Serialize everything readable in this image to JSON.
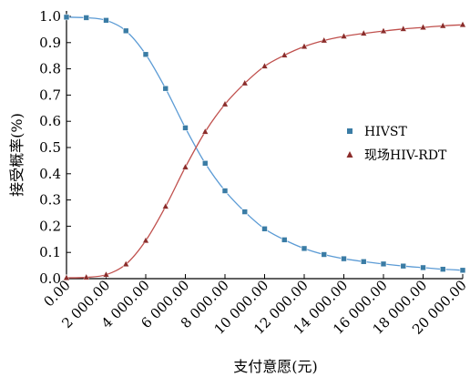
{
  "chart_data": {
    "type": "line",
    "title": "",
    "xlabel": "支付意愿(元)",
    "ylabel": "接受概率(%)",
    "xlim": [
      0,
      20000
    ],
    "ylim": [
      0,
      1.0
    ],
    "x_ticks": [
      0,
      2000,
      4000,
      6000,
      8000,
      10000,
      12000,
      14000,
      16000,
      18000,
      20000
    ],
    "x_tick_labels": [
      "0.00",
      "2 000.00",
      "4 000.00",
      "6 000.00",
      "8 000.00",
      "10 000.00",
      "12 000.00",
      "14 000.00",
      "16 000.00",
      "18 000.00",
      "20 000.00"
    ],
    "y_ticks": [
      0,
      0.1,
      0.2,
      0.3,
      0.4,
      0.5,
      0.6,
      0.7,
      0.8,
      0.9,
      1.0
    ],
    "y_tick_labels": [
      "0.0",
      "0.1",
      "0.2",
      "0.3",
      "0.4",
      "0.5",
      "0.6",
      "0.7",
      "0.8",
      "0.9",
      "1.0"
    ],
    "grid": false,
    "legend_position": "right",
    "x": [
      0,
      1000,
      2000,
      3000,
      4000,
      5000,
      6000,
      7000,
      8000,
      9000,
      10000,
      11000,
      12000,
      13000,
      14000,
      15000,
      16000,
      17000,
      18000,
      19000,
      20000
    ],
    "series": [
      {
        "name": "HIVST",
        "color": "#5b9bd5",
        "marker": "square",
        "marker_color": "#3a7ca5",
        "values": [
          0.997,
          0.995,
          0.985,
          0.945,
          0.855,
          0.725,
          0.575,
          0.44,
          0.335,
          0.255,
          0.19,
          0.148,
          0.115,
          0.092,
          0.076,
          0.065,
          0.056,
          0.048,
          0.042,
          0.036,
          0.032
        ]
      },
      {
        "name": "现场HIV-RDT",
        "color": "#c0504d",
        "marker": "triangle",
        "marker_color": "#8b2c2a",
        "values": [
          0.003,
          0.005,
          0.015,
          0.055,
          0.145,
          0.275,
          0.425,
          0.56,
          0.665,
          0.745,
          0.81,
          0.852,
          0.885,
          0.908,
          0.924,
          0.935,
          0.944,
          0.952,
          0.958,
          0.964,
          0.968
        ]
      }
    ]
  }
}
